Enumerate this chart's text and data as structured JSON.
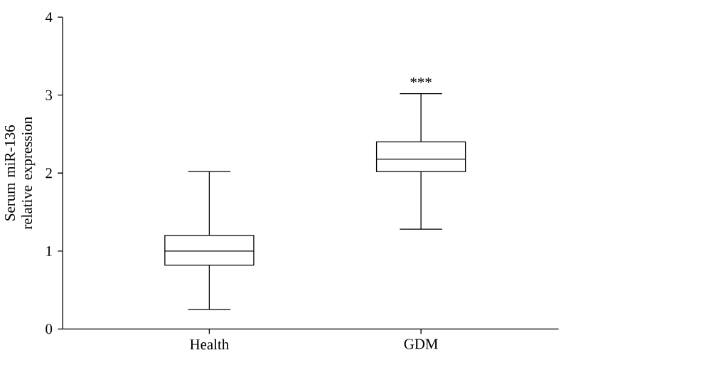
{
  "chart_data": {
    "type": "box",
    "ylabel": "Serum miR-136 relative expression",
    "categories": [
      "Health",
      "GDM"
    ],
    "boxes": [
      {
        "low": 0.25,
        "q1": 0.82,
        "median": 1.0,
        "q3": 1.2,
        "high": 2.02
      },
      {
        "low": 1.28,
        "q1": 2.02,
        "median": 2.18,
        "q3": 2.4,
        "high": 3.02
      }
    ],
    "ylim": [
      0,
      4
    ],
    "yticks": [
      0,
      1,
      2,
      3,
      4
    ],
    "annotations": [
      "***"
    ]
  }
}
